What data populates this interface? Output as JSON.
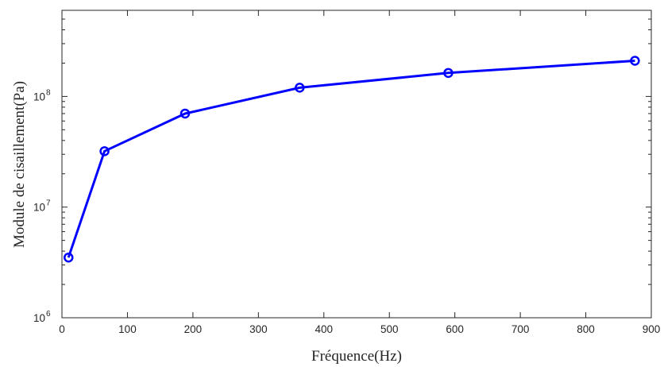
{
  "chart_data": {
    "type": "line",
    "title": "",
    "xlabel": "Fréquence(Hz)",
    "ylabel": "Module de cisaillement(Pa)",
    "xlim": [
      0,
      900
    ],
    "ylim": [
      1000000,
      600000000
    ],
    "yscale": "log",
    "grid": false,
    "legend": "none",
    "x_ticks": [
      "0",
      "100",
      "200",
      "300",
      "400",
      "500",
      "600",
      "700",
      "800",
      "900"
    ],
    "y_ticks": [
      {
        "base": "10",
        "exp": "6"
      },
      {
        "base": "10",
        "exp": "7"
      },
      {
        "base": "10",
        "exp": "8"
      }
    ],
    "series": [
      {
        "color": "#0000ff",
        "marker": "circle",
        "x": [
          10,
          65,
          188,
          363,
          590,
          875
        ],
        "y": [
          3500000,
          32000000,
          70000000,
          120000000,
          163000000,
          210000000
        ]
      }
    ]
  }
}
